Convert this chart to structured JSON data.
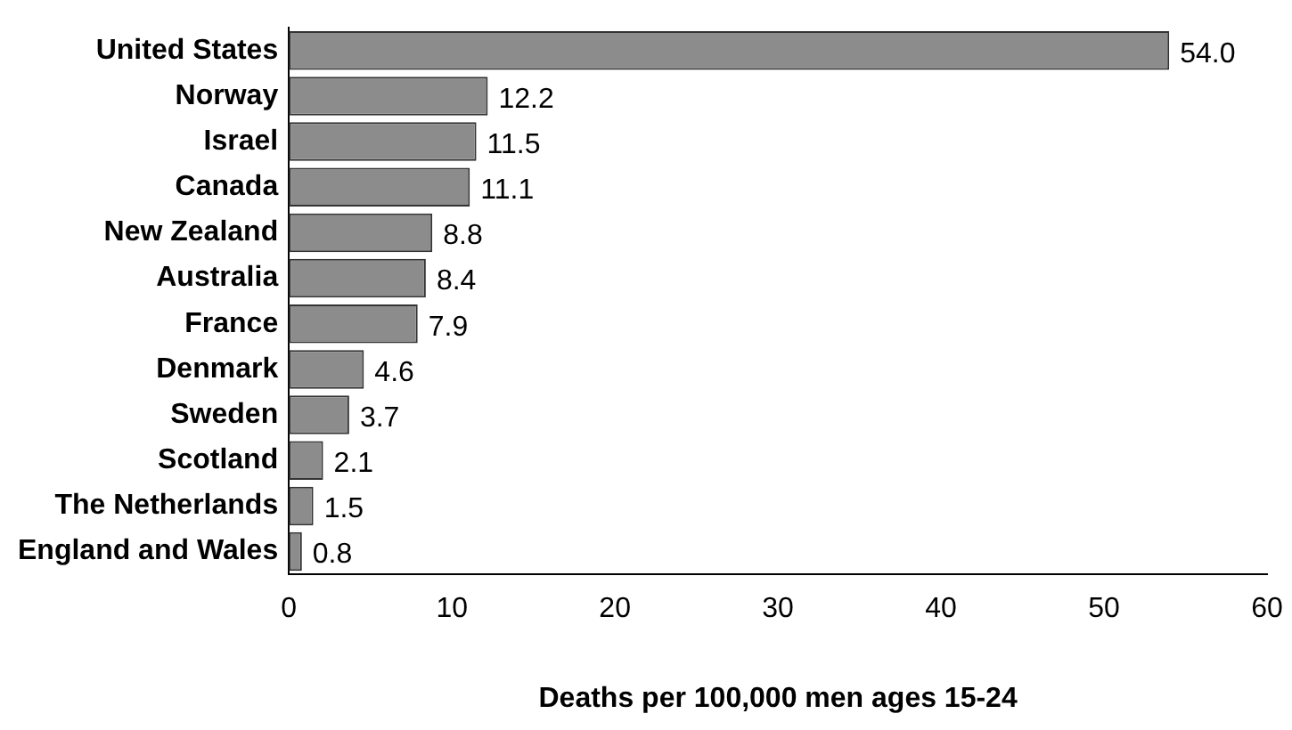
{
  "chart_data": {
    "type": "bar",
    "orientation": "horizontal",
    "xlabel": "Deaths per 100,000 men ages 15-24",
    "categories": [
      "United States",
      "Norway",
      "Israel",
      "Canada",
      "New Zealand",
      "Australia",
      "France",
      "Denmark",
      "Sweden",
      "Scotland",
      "The Netherlands",
      "England and Wales"
    ],
    "values": [
      54.0,
      12.2,
      11.5,
      11.1,
      8.8,
      8.4,
      7.9,
      4.6,
      3.7,
      2.1,
      1.5,
      0.8
    ],
    "value_labels": [
      "54.0",
      "12.2",
      "11.5",
      "11.1",
      "8.8",
      "8.4",
      "7.9",
      "4.6",
      "3.7",
      "2.1",
      "1.5",
      "0.8"
    ],
    "color": "#8c8c8c",
    "xlim": [
      0,
      60
    ],
    "xticks": [
      0,
      10,
      20,
      30,
      40,
      50,
      60
    ],
    "grid": false,
    "legend": false
  }
}
